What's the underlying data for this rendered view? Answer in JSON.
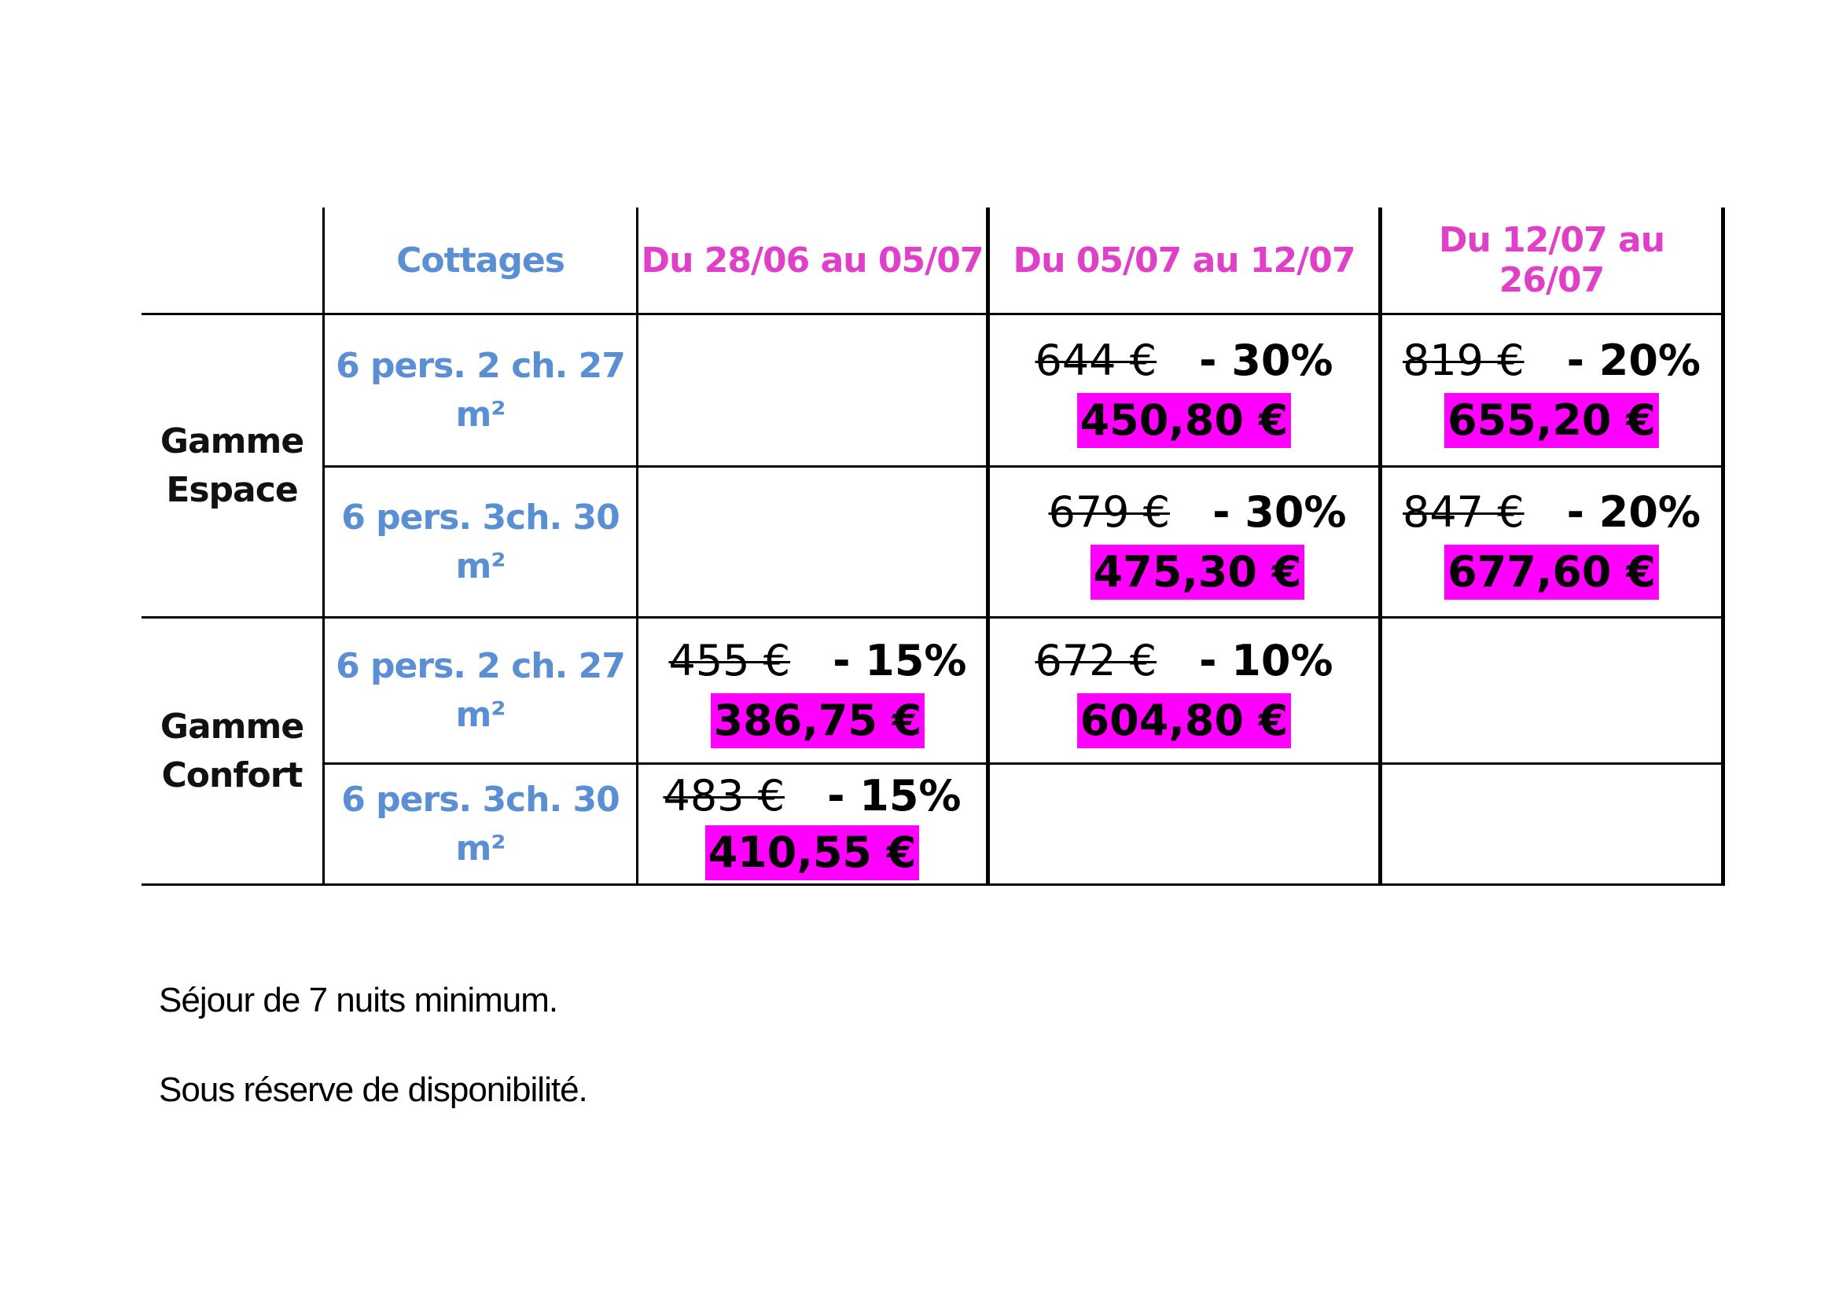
{
  "table": {
    "headers": {
      "cottages": "Cottages",
      "period1": "Du 28/06  au 05/07",
      "period2": "Du 05/07  au 12/07",
      "period3": "Du 12/07  au 26/07"
    },
    "groups": [
      {
        "line1": "Gamme",
        "line2": "Espace"
      },
      {
        "line1": "Gamme",
        "line2": "Confort"
      }
    ],
    "rows": [
      {
        "cottage_line1": "6 pers. 2 ch. 27",
        "cottage_line2": "m²",
        "p2": {
          "old": "644 €",
          "discount": "- 30%",
          "new": "450,80 €"
        },
        "p3": {
          "old": "819 €",
          "discount": "- 20%",
          "new": "655,20 €"
        }
      },
      {
        "cottage_line1": "6 pers. 3ch. 30",
        "cottage_line2": "m²",
        "p2": {
          "old": "679 €",
          "discount": "- 30%",
          "new": "475,30 €"
        },
        "p3": {
          "old": "847 €",
          "discount": "- 20%",
          "new": "677,60 €"
        }
      },
      {
        "cottage_line1": "6 pers. 2 ch. 27",
        "cottage_line2": "m²",
        "p1": {
          "old": "455 €",
          "discount": "- 15%",
          "new": "386,75 €"
        },
        "p2": {
          "old": "672 €",
          "discount": "- 10%",
          "new": "604,80 €"
        }
      },
      {
        "cottage_line1": "6 pers. 3ch. 30",
        "cottage_line2": "m²",
        "p1": {
          "old": "483 €",
          "discount": "- 15%",
          "new": "410,55 €"
        }
      }
    ]
  },
  "notes": {
    "line1": "Séjour de 7 nuits minimum.",
    "line2": "Sous réserve de disponibilité."
  },
  "colors": {
    "header_blue": "#5b8fd4",
    "header_pink": "#e040c8",
    "price_highlight": "#ff00ff"
  }
}
